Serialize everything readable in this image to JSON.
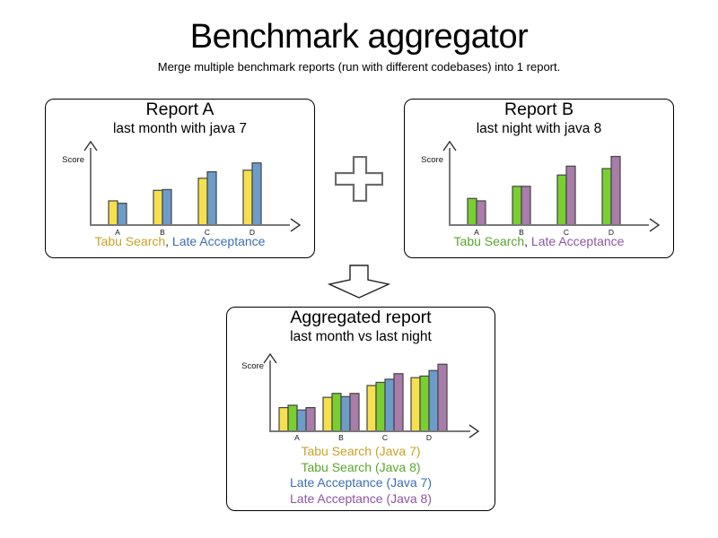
{
  "page": {
    "title": "Benchmark aggregator",
    "subtitle": "Merge multiple benchmark reports (run with different codebases) into 1 report."
  },
  "icons": {
    "plus_operator": "plus-icon",
    "merge_arrow": "down-arrow-icon"
  },
  "colors": {
    "tabu_search_java7_bar": "#F6E04E",
    "tabu_search_java8_bar": "#79CE31",
    "late_acceptance_java7_bar": "#6D9CCA",
    "late_acceptance_java8_bar": "#A97CA9",
    "tabu_search_java7_text": "#C9A227",
    "tabu_search_java8_text": "#58A62C",
    "late_acceptance_java7_text": "#3D6EB5",
    "late_acceptance_java8_text": "#8E56A2",
    "axis": "#787878",
    "arrowhead": "#333333",
    "bar_border": "#444444",
    "panel_border": "#000000"
  },
  "chart_data": [
    {
      "id": "report_a",
      "type": "bar",
      "title": "Report A",
      "subtitle": "last month with java 7",
      "ylabel": "Score",
      "categories": [
        "A",
        "B",
        "C",
        "D"
      ],
      "ylim": [
        0,
        100
      ],
      "grid": false,
      "legend_position": "bottom",
      "legend_layout": "inline",
      "legend_separator": ", ",
      "series": [
        {
          "name": "Tabu Search",
          "values": [
            30,
            43,
            58,
            68
          ],
          "color": "#F6E04E",
          "text_color": "#C9A227"
        },
        {
          "name": "Late Acceptance",
          "values": [
            27,
            44,
            66,
            77
          ],
          "color": "#6D9CCA",
          "text_color": "#3D6EB5"
        }
      ]
    },
    {
      "id": "report_b",
      "type": "bar",
      "title": "Report B",
      "subtitle": "last night with java 8",
      "ylabel": "Score",
      "categories": [
        "A",
        "B",
        "C",
        "D"
      ],
      "ylim": [
        0,
        100
      ],
      "grid": false,
      "legend_position": "bottom",
      "legend_layout": "inline",
      "legend_separator": ", ",
      "series": [
        {
          "name": "Tabu Search",
          "values": [
            33,
            48,
            62,
            70
          ],
          "color": "#79CE31",
          "text_color": "#58A62C"
        },
        {
          "name": "Late Acceptance",
          "values": [
            30,
            48,
            73,
            85
          ],
          "color": "#A97CA9",
          "text_color": "#8E56A2"
        }
      ]
    },
    {
      "id": "aggregated",
      "type": "bar",
      "title": "Aggregated report",
      "subtitle": "last month vs last night",
      "ylabel": "Score",
      "categories": [
        "A",
        "B",
        "C",
        "D"
      ],
      "ylim": [
        0,
        100
      ],
      "grid": false,
      "legend_position": "bottom",
      "legend_layout": "stacked",
      "series": [
        {
          "name": "Tabu Search (Java 7)",
          "values": [
            30,
            43,
            58,
            68
          ],
          "color": "#F6E04E",
          "text_color": "#C9A227"
        },
        {
          "name": "Tabu Search (Java 8)",
          "values": [
            33,
            48,
            62,
            70
          ],
          "color": "#79CE31",
          "text_color": "#58A62C"
        },
        {
          "name": "Late Acceptance (Java 7)",
          "values": [
            27,
            44,
            66,
            77
          ],
          "color": "#6D9CCA",
          "text_color": "#3D6EB5"
        },
        {
          "name": "Late Acceptance (Java 8)",
          "values": [
            30,
            48,
            73,
            85
          ],
          "color": "#A97CA9",
          "text_color": "#8E56A2"
        }
      ]
    }
  ]
}
